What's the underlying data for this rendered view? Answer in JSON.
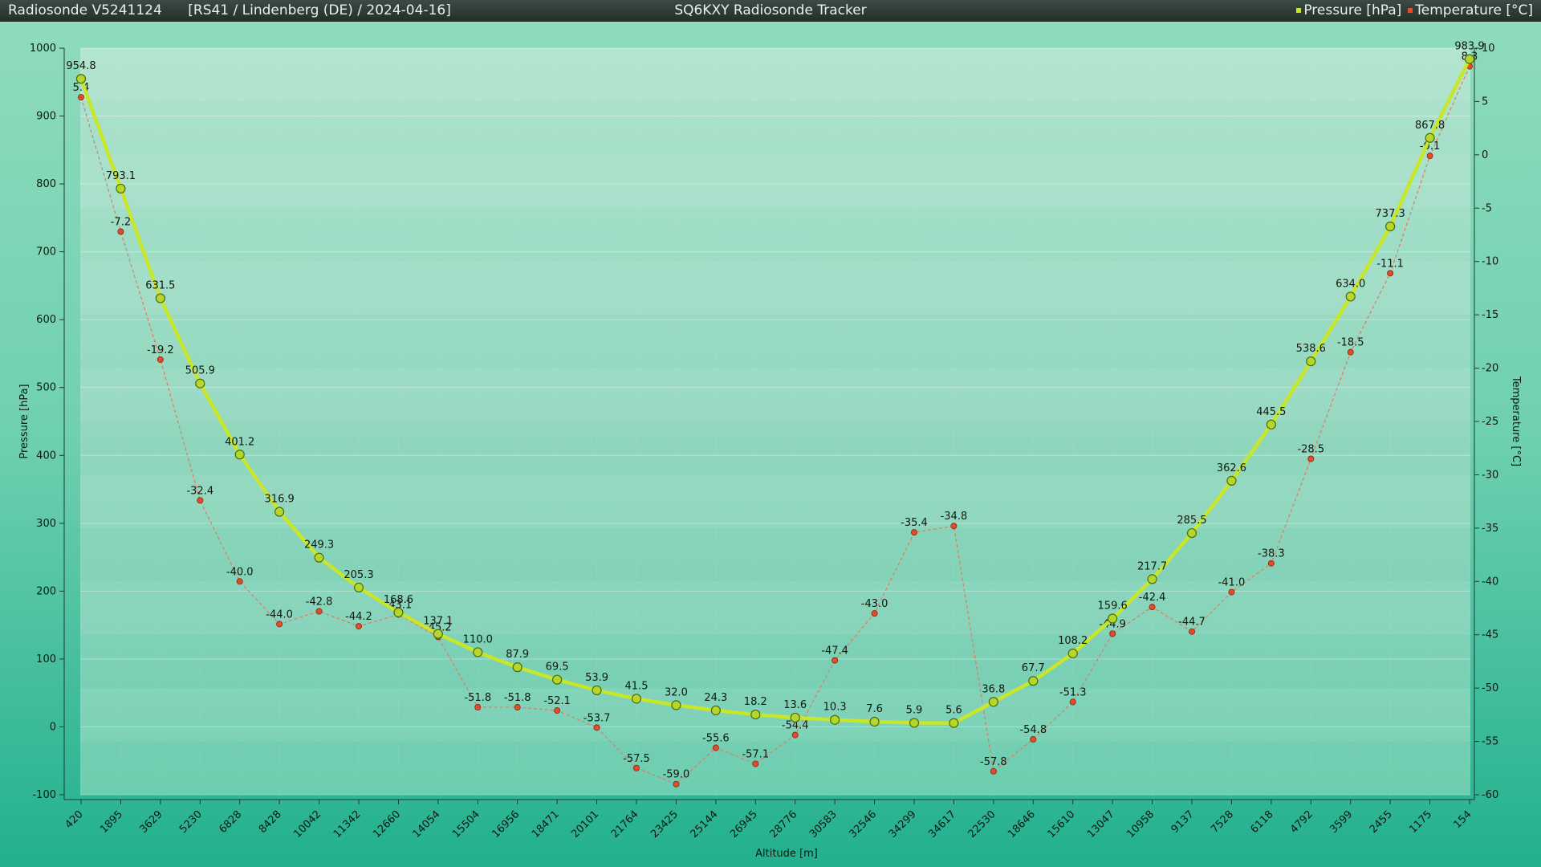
{
  "header": {
    "device": "Radiosonde V5241124",
    "flight": "[RS41 / Lindenberg (DE) / 2024-04-16]",
    "app_title": "SQ6KXY Radiosonde Tracker"
  },
  "colors": {
    "pressure": "#c8e62a",
    "pressure_marker": "#b5d62a",
    "temperature": "#e64a28",
    "temperature_line": "#e07b5e",
    "plot_bg": "#a5dfc8",
    "text": "#101810"
  },
  "chart_data": {
    "type": "line",
    "title": "",
    "xlabel": "Altitude [m]",
    "ylabel": "Pressure [hPa]",
    "y2label": "Temperature [°C]",
    "ylim": [
      -100,
      1000
    ],
    "y2lim": [
      -60,
      10
    ],
    "yticks": [
      -100,
      0,
      100,
      200,
      300,
      400,
      500,
      600,
      700,
      800,
      900,
      1000
    ],
    "y2ticks": [
      -60,
      -55,
      -50,
      -45,
      -40,
      -35,
      -30,
      -25,
      -20,
      -15,
      -10,
      -5,
      0,
      5,
      10
    ],
    "grid": true,
    "legend": "top-right",
    "categories": [
      "420",
      "1895",
      "3629",
      "5230",
      "6828",
      "8428",
      "10042",
      "11342",
      "12660",
      "14054",
      "15504",
      "16956",
      "18471",
      "20101",
      "21764",
      "23425",
      "25144",
      "26945",
      "28776",
      "30583",
      "32546",
      "34299",
      "34617",
      "22530",
      "18646",
      "15610",
      "13047",
      "10958",
      "9137",
      "7528",
      "6118",
      "4792",
      "3599",
      "2455",
      "1175",
      "154"
    ],
    "series": [
      {
        "name": "Pressure [hPa]",
        "axis": "left",
        "values": [
          954.8,
          793.1,
          631.5,
          505.9,
          401.2,
          316.9,
          249.3,
          205.3,
          168.6,
          137.1,
          110.0,
          87.9,
          69.5,
          53.9,
          41.5,
          32.0,
          24.3,
          18.2,
          13.6,
          10.3,
          7.6,
          5.9,
          5.6,
          36.8,
          67.7,
          108.2,
          159.6,
          217.7,
          285.5,
          362.6,
          445.5,
          538.6,
          634.0,
          737.3,
          867.8,
          983.9
        ]
      },
      {
        "name": "Temperature [°C]",
        "axis": "right",
        "values": [
          5.4,
          -7.2,
          -19.2,
          -32.4,
          -40.0,
          -44.0,
          -42.8,
          -44.2,
          -43.1,
          -45.2,
          -51.8,
          -51.8,
          -52.1,
          -53.7,
          -57.5,
          -59.0,
          -55.6,
          -57.1,
          -54.4,
          -47.4,
          -43.0,
          -35.4,
          -34.8,
          -57.8,
          -54.8,
          -51.3,
          -44.9,
          -42.4,
          -44.7,
          -41.0,
          -38.3,
          -28.5,
          -18.5,
          -11.1,
          -0.1,
          8.3
        ]
      }
    ]
  }
}
